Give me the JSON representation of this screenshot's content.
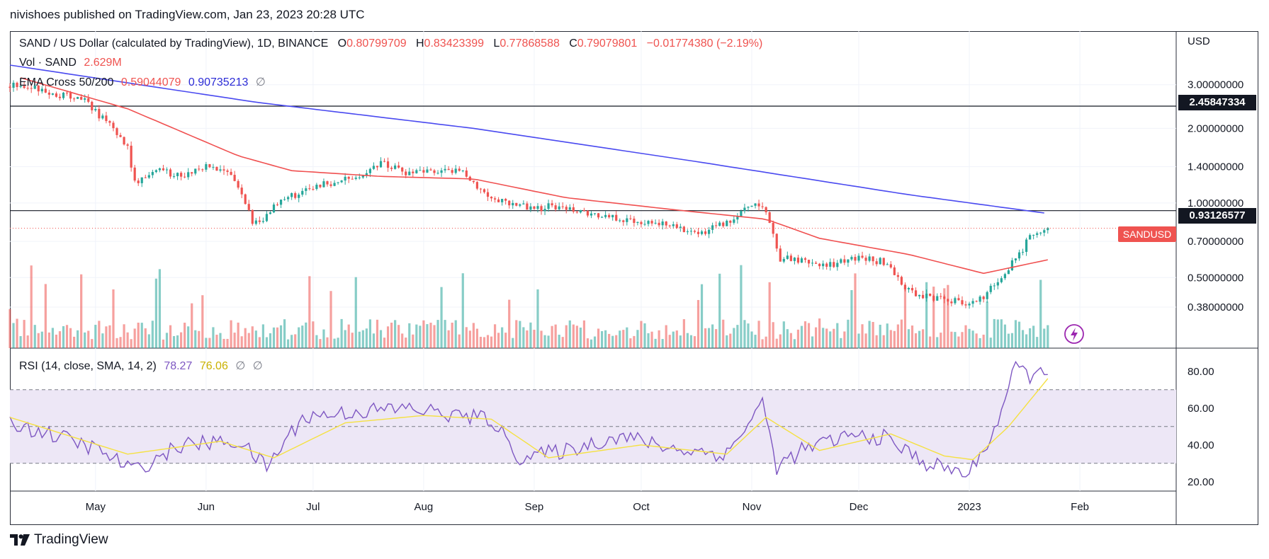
{
  "publisher_line": "nivishoes published on TradingView.com, Jan 23, 2023 20:28 UTC",
  "header": {
    "symbol": "SAND / US Dollar (calculated by TradingView), 1D, BINANCE",
    "open_label": "O",
    "open": "0.80799709",
    "high_label": "H",
    "high": "0.83423399",
    "low_label": "L",
    "low": "0.77868588",
    "close_label": "C",
    "close": "0.79079801",
    "change": "−0.01774380 (−2.19%)"
  },
  "volume_legend": {
    "label": "Vol · SAND",
    "value": "2.629M"
  },
  "ema_legend": {
    "label": "EMA Cross 50/200",
    "ema50": "0.59044079",
    "ema200": "0.90735213",
    "extra": "∅"
  },
  "rsi_legend": {
    "label": "RSI (14, close, SMA, 14, 2)",
    "rsi": "78.27",
    "sma": "76.06",
    "extra1": "∅",
    "extra2": "∅"
  },
  "price_axis": {
    "currency": "USD",
    "ticks": [
      "3.00000000",
      "2.00000000",
      "1.40000000",
      "1.00000000",
      "0.70000000",
      "0.50000000",
      "0.38000000"
    ]
  },
  "rsi_axis": {
    "ticks": [
      "80.00",
      "60.00",
      "40.00",
      "20.00"
    ]
  },
  "time_axis": {
    "ticks": [
      "May",
      "Jun",
      "Jul",
      "Aug",
      "Sep",
      "Oct",
      "Nov",
      "Dec",
      "2023",
      "Feb"
    ]
  },
  "horizontal_lines": [
    {
      "value": "2.45847334"
    },
    {
      "value": "0.93126577"
    }
  ],
  "last_price_tag": "SANDUSD",
  "footer_brand": "TradingView",
  "colors": {
    "up": "#26a69a",
    "down": "#ef5350",
    "ema50": "#f05050",
    "ema200": "#4a4af0",
    "rsi": "#7e57c2",
    "rsi_sma": "#f5e142",
    "rsi_band": "#ede7f6"
  },
  "chart_data": [
    {
      "type": "candlestick",
      "title": "SAND / US Dollar (calculated by TradingView), 1D, BINANCE",
      "y_scale": "log",
      "ylim": [
        0.3,
        3.6
      ],
      "x_range": [
        "2022-04-07",
        "2023-02-28"
      ],
      "close_series": {
        "dates": [
          "2022-04-10",
          "2022-04-20",
          "2022-04-28",
          "2022-05-05",
          "2022-05-10",
          "2022-05-12",
          "2022-05-18",
          "2022-05-25",
          "2022-06-01",
          "2022-06-08",
          "2022-06-14",
          "2022-06-18",
          "2022-06-22",
          "2022-06-28",
          "2022-07-05",
          "2022-07-12",
          "2022-07-20",
          "2022-07-28",
          "2022-08-05",
          "2022-08-12",
          "2022-08-18",
          "2022-08-24",
          "2022-09-01",
          "2022-09-08",
          "2022-09-15",
          "2022-09-22",
          "2022-10-01",
          "2022-10-10",
          "2022-10-18",
          "2022-10-25",
          "2022-11-01",
          "2022-11-05",
          "2022-11-09",
          "2022-11-15",
          "2022-11-22",
          "2022-12-01",
          "2022-12-08",
          "2022-12-14",
          "2022-12-19",
          "2022-12-26",
          "2023-01-01",
          "2023-01-05",
          "2023-01-10",
          "2023-01-14",
          "2023-01-18",
          "2023-01-23"
        ],
        "close": [
          3.0,
          2.75,
          2.6,
          2.05,
          1.7,
          1.2,
          1.35,
          1.3,
          1.4,
          1.3,
          0.85,
          0.88,
          1.05,
          1.1,
          1.2,
          1.25,
          1.45,
          1.3,
          1.35,
          1.35,
          1.1,
          1.0,
          0.95,
          0.98,
          0.9,
          0.87,
          0.85,
          0.8,
          0.77,
          0.82,
          0.98,
          0.92,
          0.6,
          0.58,
          0.56,
          0.6,
          0.58,
          0.45,
          0.42,
          0.41,
          0.39,
          0.42,
          0.51,
          0.6,
          0.72,
          0.79
        ]
      },
      "ema50": {
        "dates": [
          "2022-04-10",
          "2022-05-10",
          "2022-06-10",
          "2022-06-25",
          "2022-07-20",
          "2022-08-15",
          "2022-09-10",
          "2022-10-10",
          "2022-11-05",
          "2022-11-20",
          "2022-12-15",
          "2023-01-05",
          "2023-01-23"
        ],
        "values": [
          3.2,
          2.4,
          1.55,
          1.35,
          1.28,
          1.25,
          1.05,
          0.94,
          0.86,
          0.72,
          0.62,
          0.52,
          0.59
        ]
      },
      "ema200": {
        "dates": [
          "2022-04-07",
          "2022-06-15",
          "2022-08-15",
          "2022-10-15",
          "2022-12-15",
          "2023-01-23"
        ],
        "values": [
          3.6,
          2.55,
          2.0,
          1.48,
          1.08,
          0.907
        ]
      }
    },
    {
      "type": "bar",
      "title": "Vol · SAND",
      "series": [
        {
          "name": "Vol · SAND",
          "note": "daily volume, coloured up/down"
        }
      ]
    },
    {
      "type": "line",
      "title": "RSI (14, close, SMA, 14, 2)",
      "ylim": [
        18,
        88
      ],
      "bands": [
        30,
        50,
        70
      ],
      "rsi": {
        "dates": [
          "2022-04-07",
          "2022-04-20",
          "2022-05-01",
          "2022-05-12",
          "2022-05-25",
          "2022-06-10",
          "2022-06-18",
          "2022-06-28",
          "2022-07-12",
          "2022-07-28",
          "2022-08-10",
          "2022-08-20",
          "2022-08-28",
          "2022-09-10",
          "2022-09-25",
          "2022-10-10",
          "2022-10-25",
          "2022-11-04",
          "2022-11-08",
          "2022-11-15",
          "2022-11-28",
          "2022-12-08",
          "2022-12-20",
          "2023-01-01",
          "2023-01-08",
          "2023-01-14",
          "2023-01-18",
          "2023-01-23"
        ],
        "values": [
          52,
          45,
          38,
          26,
          40,
          42,
          28,
          55,
          58,
          60,
          56,
          54,
          33,
          37,
          45,
          38,
          35,
          63,
          28,
          37,
          45,
          44,
          30,
          24,
          48,
          82,
          78,
          78.27
        ]
      },
      "sma": {
        "dates": [
          "2022-04-07",
          "2022-05-10",
          "2022-06-05",
          "2022-06-20",
          "2022-07-10",
          "2022-08-01",
          "2022-08-20",
          "2022-09-05",
          "2022-10-01",
          "2022-10-25",
          "2022-11-05",
          "2022-11-20",
          "2022-12-10",
          "2022-12-25",
          "2023-01-02",
          "2023-01-12",
          "2023-01-23"
        ],
        "values": [
          55,
          35,
          42,
          33,
          52,
          56,
          54,
          33,
          40,
          35,
          55,
          37,
          46,
          34,
          32,
          50,
          76.06
        ]
      }
    }
  ]
}
